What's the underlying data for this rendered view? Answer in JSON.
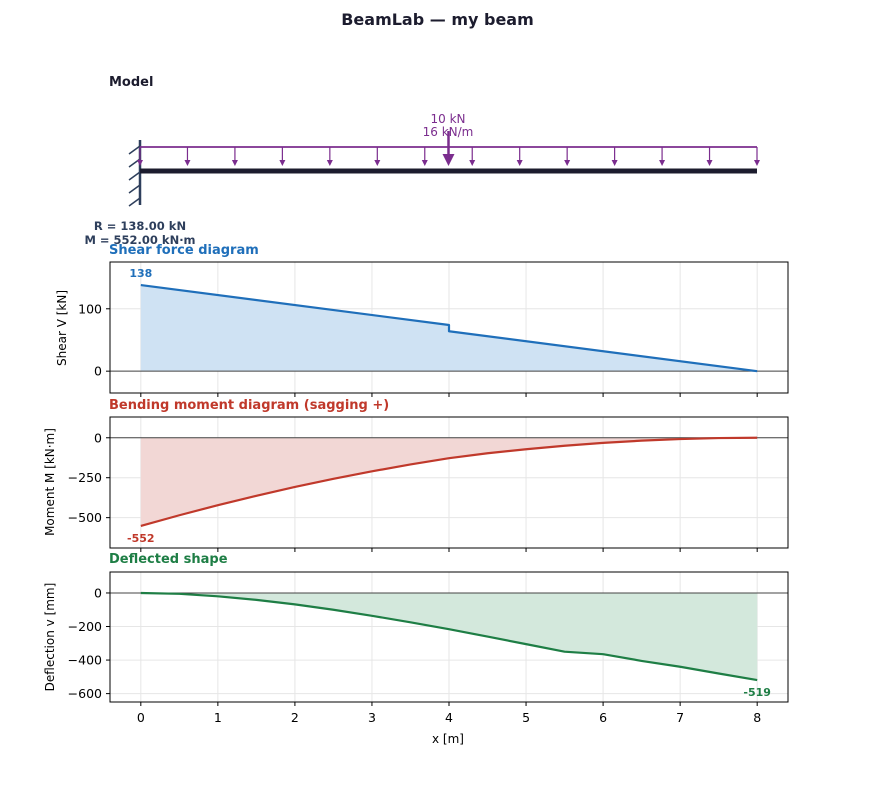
{
  "title": "BeamLab — my beam",
  "model": {
    "section_title": "Model",
    "point_load_label": "10 kN",
    "dist_load_label": "16 kN/m",
    "reaction_force_label": "R = 138.00 kN",
    "reaction_moment_label": "M = 552.00 kN·m",
    "beam_length": 8,
    "point_load_position": 4,
    "colors": {
      "load": "#7b2d8e",
      "beam": "#1c1c2e",
      "support": "#2e3f5c"
    }
  },
  "chart_data": [
    {
      "type": "area",
      "title": "Shear force diagram",
      "ylabel": "Shear V [kN]",
      "xlabel": "",
      "color": "#1f6fba",
      "fill": "#cfe2f3",
      "ylim": [
        -35,
        175
      ],
      "yticks": [
        0,
        100
      ],
      "xlim": [
        -0.4,
        8.4
      ],
      "grid": true,
      "x": [
        0,
        4,
        4,
        8
      ],
      "y": [
        138,
        74,
        64,
        0
      ],
      "peak_label": {
        "x": 0,
        "y": 138,
        "text": "138"
      }
    },
    {
      "type": "area",
      "title": "Bending moment diagram (sagging +)",
      "ylabel": "Moment M [kN·m]",
      "xlabel": "",
      "color": "#c0392b",
      "fill": "#f2d7d5",
      "ylim": [
        -690,
        130
      ],
      "yticks": [
        0,
        -250,
        -500
      ],
      "xlim": [
        -0.4,
        8.4
      ],
      "grid": true,
      "x": [
        0,
        0.5,
        1,
        1.5,
        2,
        2.5,
        3,
        3.5,
        4,
        4.5,
        5,
        5.5,
        6,
        6.5,
        7,
        7.5,
        8
      ],
      "y": [
        -552,
        -485,
        -422,
        -363,
        -308,
        -257,
        -210,
        -167,
        -128,
        -97,
        -72,
        -50,
        -32,
        -18,
        -8,
        -2,
        0
      ],
      "peak_label": {
        "x": 0,
        "y": -552,
        "text": "-552"
      }
    },
    {
      "type": "area",
      "title": "Deflected shape",
      "ylabel": "Deflection v [mm]",
      "xlabel": "x [m]",
      "color": "#1e7e45",
      "fill": "#d3e8dc",
      "ylim": [
        -650,
        125
      ],
      "yticks": [
        0,
        -200,
        -400,
        -600
      ],
      "xlim": [
        -0.4,
        8.4
      ],
      "xticks": [
        0,
        1,
        2,
        3,
        4,
        5,
        6,
        7,
        8
      ],
      "grid": true,
      "x": [
        0,
        0.5,
        1,
        1.5,
        2,
        2.5,
        3,
        3.5,
        4,
        4.5,
        5,
        5.5,
        6,
        6.5,
        7,
        7.5,
        8
      ],
      "y": [
        0,
        -5,
        -20,
        -41,
        -68,
        -100,
        -136,
        -175,
        -216,
        -260,
        -305,
        -350,
        -365,
        -405,
        -440,
        -480,
        -519
      ],
      "peak_label": {
        "x": 8,
        "y": -519,
        "text": "-519"
      }
    }
  ]
}
